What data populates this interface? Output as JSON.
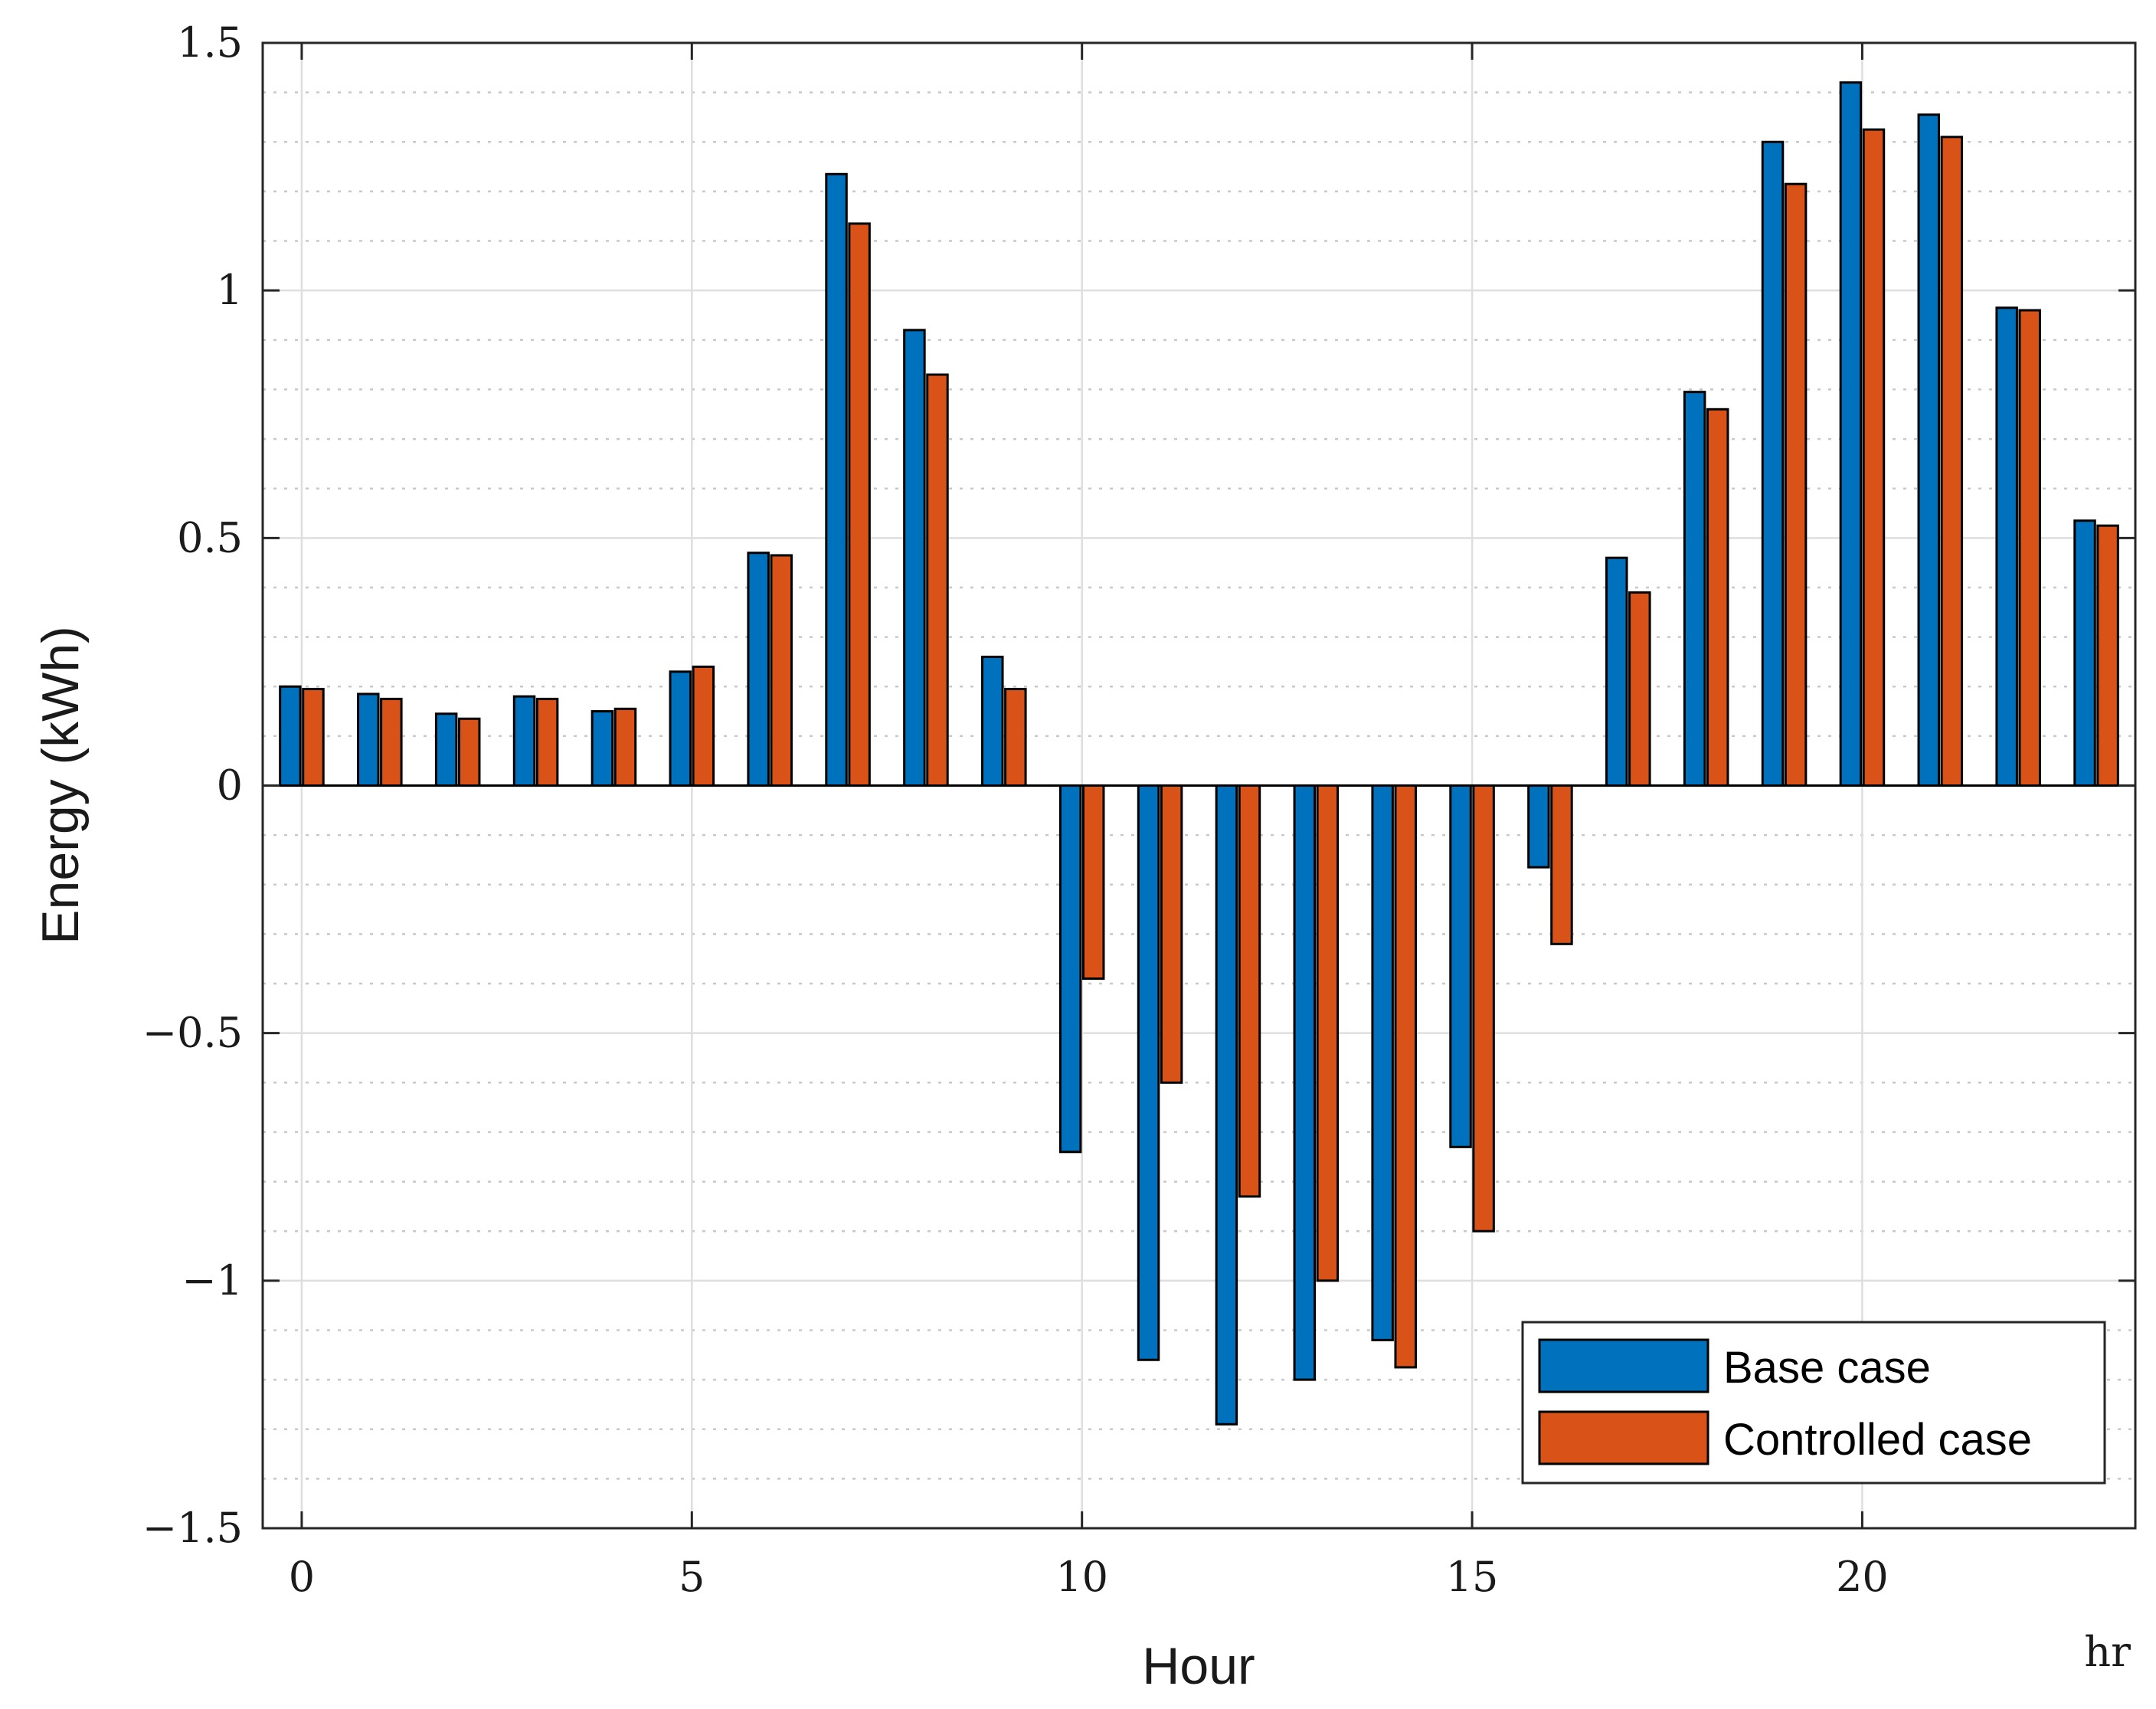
{
  "chart_data": {
    "type": "bar",
    "title": "",
    "xlabel": "Hour",
    "ylabel": "Energy (kWh)",
    "x_unit_label": "hr",
    "x": [
      0,
      1,
      2,
      3,
      4,
      5,
      6,
      7,
      8,
      9,
      10,
      11,
      12,
      13,
      14,
      15,
      16,
      17,
      18,
      19,
      20,
      21,
      22,
      23
    ],
    "xticks": [
      0,
      5,
      10,
      15,
      20
    ],
    "xtick_labels": [
      "0",
      "5",
      "10",
      "15",
      "20"
    ],
    "yticks": [
      -1.5,
      -1,
      -0.5,
      0,
      0.5,
      1,
      1.5
    ],
    "ytick_labels": [
      "−1.5",
      "−1",
      "−0.5",
      "0",
      "0.5",
      "1",
      "1.5"
    ],
    "xlim": [
      -0.5,
      23.5
    ],
    "ylim": [
      -1.5,
      1.5
    ],
    "grid": true,
    "minor_grid": true,
    "legend_position": "bottom-right",
    "series": [
      {
        "name": "Base case",
        "color": "#0072BD",
        "values": [
          0.2,
          0.185,
          0.145,
          0.18,
          0.15,
          0.23,
          0.47,
          1.235,
          0.92,
          0.26,
          -0.74,
          -1.16,
          -1.29,
          -1.2,
          -1.12,
          -0.73,
          -0.165,
          0.46,
          0.795,
          1.3,
          1.42,
          1.355,
          0.965,
          0.535
        ]
      },
      {
        "name": "Controlled case",
        "color": "#D95319",
        "values": [
          0.195,
          0.175,
          0.135,
          0.175,
          0.155,
          0.24,
          0.465,
          1.135,
          0.83,
          0.195,
          -0.39,
          -0.6,
          -0.83,
          -1.0,
          -1.175,
          -0.9,
          -0.32,
          0.39,
          0.76,
          1.215,
          1.325,
          1.31,
          0.96,
          0.525
        ]
      }
    ]
  }
}
